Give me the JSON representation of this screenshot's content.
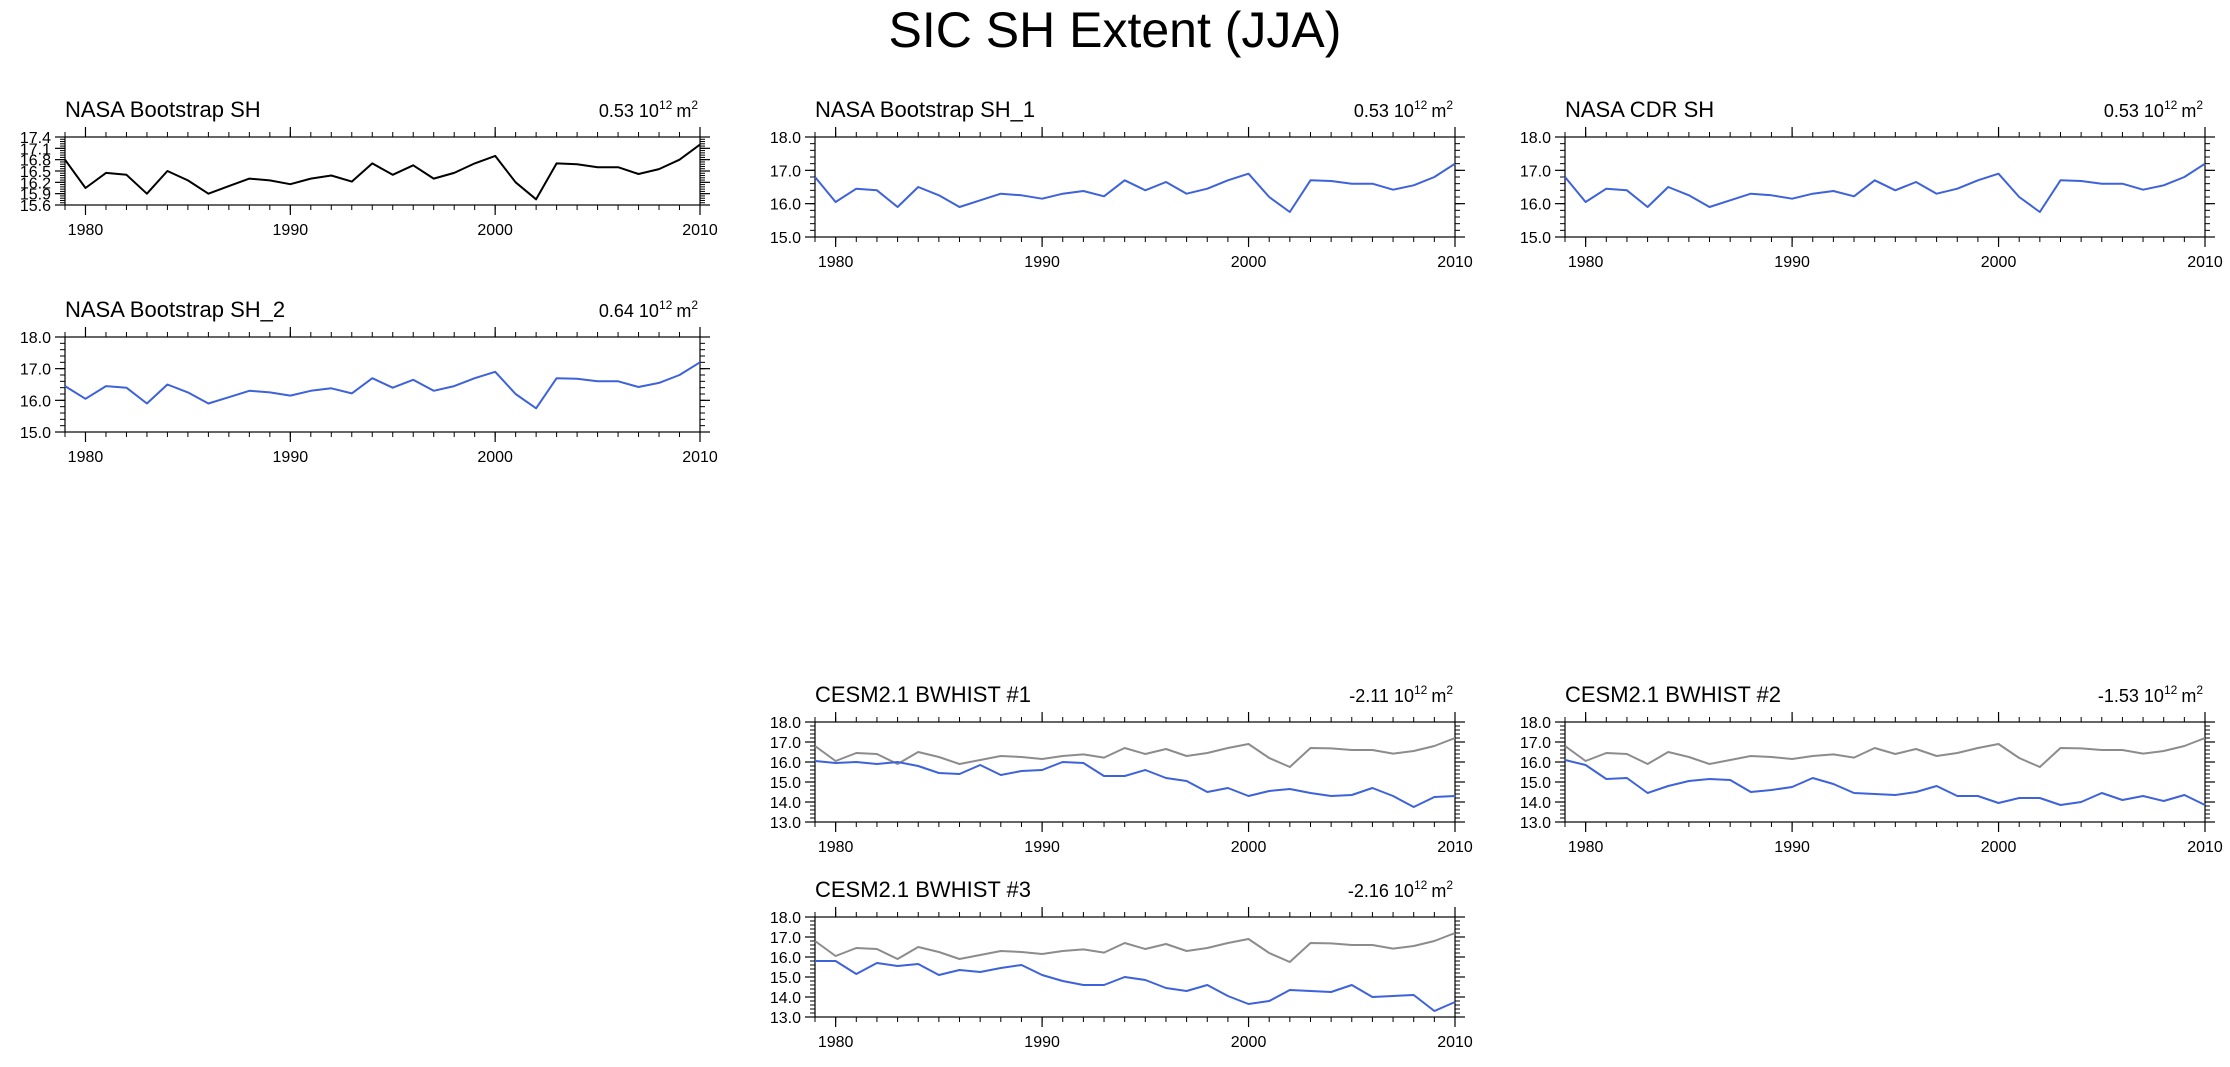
{
  "page": {
    "title": "SIC SH Extent (JJA)"
  },
  "colors": {
    "obs": "#000000",
    "model": "#3d62d9",
    "reference": "#8c8c8c"
  },
  "chart_data": [
    {
      "id": "nasa-bootstrap-sh",
      "type": "line",
      "title": "NASA Bootstrap SH",
      "annotation": {
        "value": "0.53",
        "unit_base": "10",
        "unit_exp": "12",
        "unit": "m",
        "unit_unit_exp": "2"
      },
      "xlim": [
        1979,
        2010
      ],
      "ylim": [
        15.6,
        17.4
      ],
      "yticks": [
        15.6,
        15.9,
        16.2,
        16.5,
        16.8,
        17.1,
        17.4
      ],
      "ytick_labels": [
        "15.6",
        "15.9",
        "16.2",
        "16.5",
        "16.8",
        "17.1",
        "17.4"
      ],
      "xticks": [
        1980,
        1990,
        2000,
        2010
      ],
      "xtick_labels": [
        "1980",
        "1990",
        "2000",
        "2010"
      ],
      "series": [
        {
          "name": "observed",
          "color": "#000000",
          "x": [
            1979,
            1980,
            1981,
            1982,
            1983,
            1984,
            1985,
            1986,
            1987,
            1988,
            1989,
            1990,
            1991,
            1992,
            1993,
            1994,
            1995,
            1996,
            1997,
            1998,
            1999,
            2000,
            2001,
            2002,
            2003,
            2004,
            2005,
            2006,
            2007,
            2008,
            2009,
            2010
          ],
          "values": [
            16.8,
            16.05,
            16.45,
            16.4,
            15.9,
            16.5,
            16.25,
            15.9,
            16.1,
            16.3,
            16.25,
            16.15,
            16.3,
            16.38,
            16.22,
            16.7,
            16.4,
            16.65,
            16.3,
            16.45,
            16.7,
            16.9,
            16.2,
            15.75,
            16.7,
            16.68,
            16.6,
            16.6,
            16.42,
            16.55,
            16.8,
            17.2
          ]
        }
      ]
    },
    {
      "id": "nasa-bootstrap-sh-2",
      "type": "line",
      "title": "NASA Bootstrap SH_2",
      "annotation": {
        "value": "0.64",
        "unit_base": "10",
        "unit_exp": "12",
        "unit": "m",
        "unit_unit_exp": "2"
      },
      "xlim": [
        1979,
        2010
      ],
      "ylim": [
        15.0,
        18.0
      ],
      "yticks": [
        15.0,
        16.0,
        17.0,
        18.0
      ],
      "ytick_labels": [
        "15.0",
        "16.0",
        "17.0",
        "18.0"
      ],
      "xticks": [
        1980,
        1990,
        2000,
        2010
      ],
      "xtick_labels": [
        "1980",
        "1990",
        "2000",
        "2010"
      ],
      "series": [
        {
          "name": "model",
          "color": "#3d62d9",
          "x": [
            1979,
            1980,
            1981,
            1982,
            1983,
            1984,
            1985,
            1986,
            1987,
            1988,
            1989,
            1990,
            1991,
            1992,
            1993,
            1994,
            1995,
            1996,
            1997,
            1998,
            1999,
            2000,
            2001,
            2002,
            2003,
            2004,
            2005,
            2006,
            2007,
            2008,
            2009,
            2010
          ],
          "values": [
            16.45,
            16.05,
            16.45,
            16.4,
            15.9,
            16.5,
            16.25,
            15.9,
            16.1,
            16.3,
            16.25,
            16.15,
            16.3,
            16.38,
            16.22,
            16.7,
            16.4,
            16.65,
            16.3,
            16.45,
            16.7,
            16.9,
            16.2,
            15.75,
            16.7,
            16.68,
            16.6,
            16.6,
            16.42,
            16.55,
            16.8,
            17.2
          ]
        }
      ]
    },
    {
      "id": "nasa-bootstrap-sh-1",
      "type": "line",
      "title": "NASA Bootstrap SH_1",
      "annotation": {
        "value": "0.53",
        "unit_base": "10",
        "unit_exp": "12",
        "unit": "m",
        "unit_unit_exp": "2"
      },
      "xlim": [
        1979,
        2010
      ],
      "ylim": [
        15.0,
        18.0
      ],
      "yticks": [
        15.0,
        16.0,
        17.0,
        18.0
      ],
      "ytick_labels": [
        "15.0",
        "16.0",
        "17.0",
        "18.0"
      ],
      "xticks": [
        1980,
        1990,
        2000,
        2010
      ],
      "xtick_labels": [
        "1980",
        "1990",
        "2000",
        "2010"
      ],
      "series": [
        {
          "name": "model",
          "color": "#3d62d9",
          "x": [
            1979,
            1980,
            1981,
            1982,
            1983,
            1984,
            1985,
            1986,
            1987,
            1988,
            1989,
            1990,
            1991,
            1992,
            1993,
            1994,
            1995,
            1996,
            1997,
            1998,
            1999,
            2000,
            2001,
            2002,
            2003,
            2004,
            2005,
            2006,
            2007,
            2008,
            2009,
            2010
          ],
          "values": [
            16.8,
            16.05,
            16.45,
            16.4,
            15.9,
            16.5,
            16.25,
            15.9,
            16.1,
            16.3,
            16.25,
            16.15,
            16.3,
            16.38,
            16.22,
            16.7,
            16.4,
            16.65,
            16.3,
            16.45,
            16.7,
            16.9,
            16.2,
            15.75,
            16.7,
            16.68,
            16.6,
            16.6,
            16.42,
            16.55,
            16.8,
            17.2
          ]
        }
      ]
    },
    {
      "id": "nasa-cdr-sh",
      "type": "line",
      "title": "NASA CDR SH",
      "annotation": {
        "value": "0.53",
        "unit_base": "10",
        "unit_exp": "12",
        "unit": "m",
        "unit_unit_exp": "2"
      },
      "xlim": [
        1979,
        2010
      ],
      "ylim": [
        15.0,
        18.0
      ],
      "yticks": [
        15.0,
        16.0,
        17.0,
        18.0
      ],
      "ytick_labels": [
        "15.0",
        "16.0",
        "17.0",
        "18.0"
      ],
      "xticks": [
        1980,
        1990,
        2000,
        2010
      ],
      "xtick_labels": [
        "1980",
        "1990",
        "2000",
        "2010"
      ],
      "series": [
        {
          "name": "model",
          "color": "#3d62d9",
          "x": [
            1979,
            1980,
            1981,
            1982,
            1983,
            1984,
            1985,
            1986,
            1987,
            1988,
            1989,
            1990,
            1991,
            1992,
            1993,
            1994,
            1995,
            1996,
            1997,
            1998,
            1999,
            2000,
            2001,
            2002,
            2003,
            2004,
            2005,
            2006,
            2007,
            2008,
            2009,
            2010
          ],
          "values": [
            16.8,
            16.05,
            16.45,
            16.4,
            15.9,
            16.5,
            16.25,
            15.9,
            16.1,
            16.3,
            16.25,
            16.15,
            16.3,
            16.38,
            16.22,
            16.7,
            16.4,
            16.65,
            16.3,
            16.45,
            16.7,
            16.9,
            16.2,
            15.75,
            16.7,
            16.68,
            16.6,
            16.6,
            16.42,
            16.55,
            16.8,
            17.2
          ]
        }
      ]
    },
    {
      "id": "cesm-bwhist-1",
      "type": "line",
      "title": "CESM2.1 BWHIST #1",
      "annotation": {
        "value": "-2.11",
        "unit_base": "10",
        "unit_exp": "12",
        "unit": "m",
        "unit_unit_exp": "2"
      },
      "xlim": [
        1979,
        2010
      ],
      "ylim": [
        13.0,
        18.0
      ],
      "yticks": [
        13.0,
        14.0,
        15.0,
        16.0,
        17.0,
        18.0
      ],
      "ytick_labels": [
        "13.0",
        "14.0",
        "15.0",
        "16.0",
        "17.0",
        "18.0"
      ],
      "xticks": [
        1980,
        1990,
        2000,
        2010
      ],
      "xtick_labels": [
        "1980",
        "1990",
        "2000",
        "2010"
      ],
      "series": [
        {
          "name": "reference",
          "color": "#8c8c8c",
          "x": [
            1979,
            1980,
            1981,
            1982,
            1983,
            1984,
            1985,
            1986,
            1987,
            1988,
            1989,
            1990,
            1991,
            1992,
            1993,
            1994,
            1995,
            1996,
            1997,
            1998,
            1999,
            2000,
            2001,
            2002,
            2003,
            2004,
            2005,
            2006,
            2007,
            2008,
            2009,
            2010
          ],
          "values": [
            16.8,
            16.05,
            16.45,
            16.4,
            15.9,
            16.5,
            16.25,
            15.9,
            16.1,
            16.3,
            16.25,
            16.15,
            16.3,
            16.38,
            16.22,
            16.7,
            16.4,
            16.65,
            16.3,
            16.45,
            16.7,
            16.9,
            16.2,
            15.75,
            16.7,
            16.68,
            16.6,
            16.6,
            16.42,
            16.55,
            16.8,
            17.2
          ]
        },
        {
          "name": "model",
          "color": "#3d62d9",
          "x": [
            1979,
            1980,
            1981,
            1982,
            1983,
            1984,
            1985,
            1986,
            1987,
            1988,
            1989,
            1990,
            1991,
            1992,
            1993,
            1994,
            1995,
            1996,
            1997,
            1998,
            1999,
            2000,
            2001,
            2002,
            2003,
            2004,
            2005,
            2006,
            2007,
            2008,
            2009,
            2010
          ],
          "values": [
            16.05,
            15.95,
            16.0,
            15.9,
            16.0,
            15.8,
            15.45,
            15.4,
            15.85,
            15.35,
            15.55,
            15.6,
            16.0,
            15.95,
            15.3,
            15.3,
            15.6,
            15.2,
            15.05,
            14.5,
            14.7,
            14.3,
            14.55,
            14.65,
            14.45,
            14.3,
            14.35,
            14.7,
            14.3,
            13.75,
            14.25,
            14.3
          ]
        }
      ]
    },
    {
      "id": "cesm-bwhist-2",
      "type": "line",
      "title": "CESM2.1 BWHIST #2",
      "annotation": {
        "value": "-1.53",
        "unit_base": "10",
        "unit_exp": "12",
        "unit": "m",
        "unit_unit_exp": "2"
      },
      "xlim": [
        1979,
        2010
      ],
      "ylim": [
        13.0,
        18.0
      ],
      "yticks": [
        13.0,
        14.0,
        15.0,
        16.0,
        17.0,
        18.0
      ],
      "ytick_labels": [
        "13.0",
        "14.0",
        "15.0",
        "16.0",
        "17.0",
        "18.0"
      ],
      "xticks": [
        1980,
        1990,
        2000,
        2010
      ],
      "xtick_labels": [
        "1980",
        "1990",
        "2000",
        "2010"
      ],
      "series": [
        {
          "name": "reference",
          "color": "#8c8c8c",
          "x": [
            1979,
            1980,
            1981,
            1982,
            1983,
            1984,
            1985,
            1986,
            1987,
            1988,
            1989,
            1990,
            1991,
            1992,
            1993,
            1994,
            1995,
            1996,
            1997,
            1998,
            1999,
            2000,
            2001,
            2002,
            2003,
            2004,
            2005,
            2006,
            2007,
            2008,
            2009,
            2010
          ],
          "values": [
            16.8,
            16.05,
            16.45,
            16.4,
            15.9,
            16.5,
            16.25,
            15.9,
            16.1,
            16.3,
            16.25,
            16.15,
            16.3,
            16.38,
            16.22,
            16.7,
            16.4,
            16.65,
            16.3,
            16.45,
            16.7,
            16.9,
            16.2,
            15.75,
            16.7,
            16.68,
            16.6,
            16.6,
            16.42,
            16.55,
            16.8,
            17.2
          ]
        },
        {
          "name": "model",
          "color": "#3d62d9",
          "x": [
            1979,
            1980,
            1981,
            1982,
            1983,
            1984,
            1985,
            1986,
            1987,
            1988,
            1989,
            1990,
            1991,
            1992,
            1993,
            1994,
            1995,
            1996,
            1997,
            1998,
            1999,
            2000,
            2001,
            2002,
            2003,
            2004,
            2005,
            2006,
            2007,
            2008,
            2009,
            2010
          ],
          "values": [
            16.1,
            15.85,
            15.15,
            15.2,
            14.45,
            14.8,
            15.05,
            15.15,
            15.1,
            14.5,
            14.6,
            14.75,
            15.2,
            14.9,
            14.45,
            14.4,
            14.35,
            14.5,
            14.8,
            14.3,
            14.3,
            13.95,
            14.2,
            14.2,
            13.85,
            14.0,
            14.45,
            14.1,
            14.3,
            14.05,
            14.35,
            13.85
          ]
        }
      ]
    },
    {
      "id": "cesm-bwhist-3",
      "type": "line",
      "title": "CESM2.1 BWHIST #3",
      "annotation": {
        "value": "-2.16",
        "unit_base": "10",
        "unit_exp": "12",
        "unit": "m",
        "unit_unit_exp": "2"
      },
      "xlim": [
        1979,
        2010
      ],
      "ylim": [
        13.0,
        18.0
      ],
      "yticks": [
        13.0,
        14.0,
        15.0,
        16.0,
        17.0,
        18.0
      ],
      "ytick_labels": [
        "13.0",
        "14.0",
        "15.0",
        "16.0",
        "17.0",
        "18.0"
      ],
      "xticks": [
        1980,
        1990,
        2000,
        2010
      ],
      "xtick_labels": [
        "1980",
        "1990",
        "2000",
        "2010"
      ],
      "series": [
        {
          "name": "reference",
          "color": "#8c8c8c",
          "x": [
            1979,
            1980,
            1981,
            1982,
            1983,
            1984,
            1985,
            1986,
            1987,
            1988,
            1989,
            1990,
            1991,
            1992,
            1993,
            1994,
            1995,
            1996,
            1997,
            1998,
            1999,
            2000,
            2001,
            2002,
            2003,
            2004,
            2005,
            2006,
            2007,
            2008,
            2009,
            2010
          ],
          "values": [
            16.8,
            16.05,
            16.45,
            16.4,
            15.9,
            16.5,
            16.25,
            15.9,
            16.1,
            16.3,
            16.25,
            16.15,
            16.3,
            16.38,
            16.22,
            16.7,
            16.4,
            16.65,
            16.3,
            16.45,
            16.7,
            16.9,
            16.2,
            15.75,
            16.7,
            16.68,
            16.6,
            16.6,
            16.42,
            16.55,
            16.8,
            17.2
          ]
        },
        {
          "name": "model",
          "color": "#3d62d9",
          "x": [
            1979,
            1980,
            1981,
            1982,
            1983,
            1984,
            1985,
            1986,
            1987,
            1988,
            1989,
            1990,
            1991,
            1992,
            1993,
            1994,
            1995,
            1996,
            1997,
            1998,
            1999,
            2000,
            2001,
            2002,
            2003,
            2004,
            2005,
            2006,
            2007,
            2008,
            2009,
            2010
          ],
          "values": [
            15.8,
            15.8,
            15.15,
            15.7,
            15.55,
            15.65,
            15.1,
            15.35,
            15.25,
            15.45,
            15.6,
            15.1,
            14.8,
            14.6,
            14.6,
            15.0,
            14.85,
            14.45,
            14.3,
            14.6,
            14.05,
            13.65,
            13.8,
            14.35,
            14.3,
            14.25,
            14.6,
            14.0,
            14.05,
            14.1,
            13.3,
            13.75
          ]
        }
      ]
    }
  ]
}
